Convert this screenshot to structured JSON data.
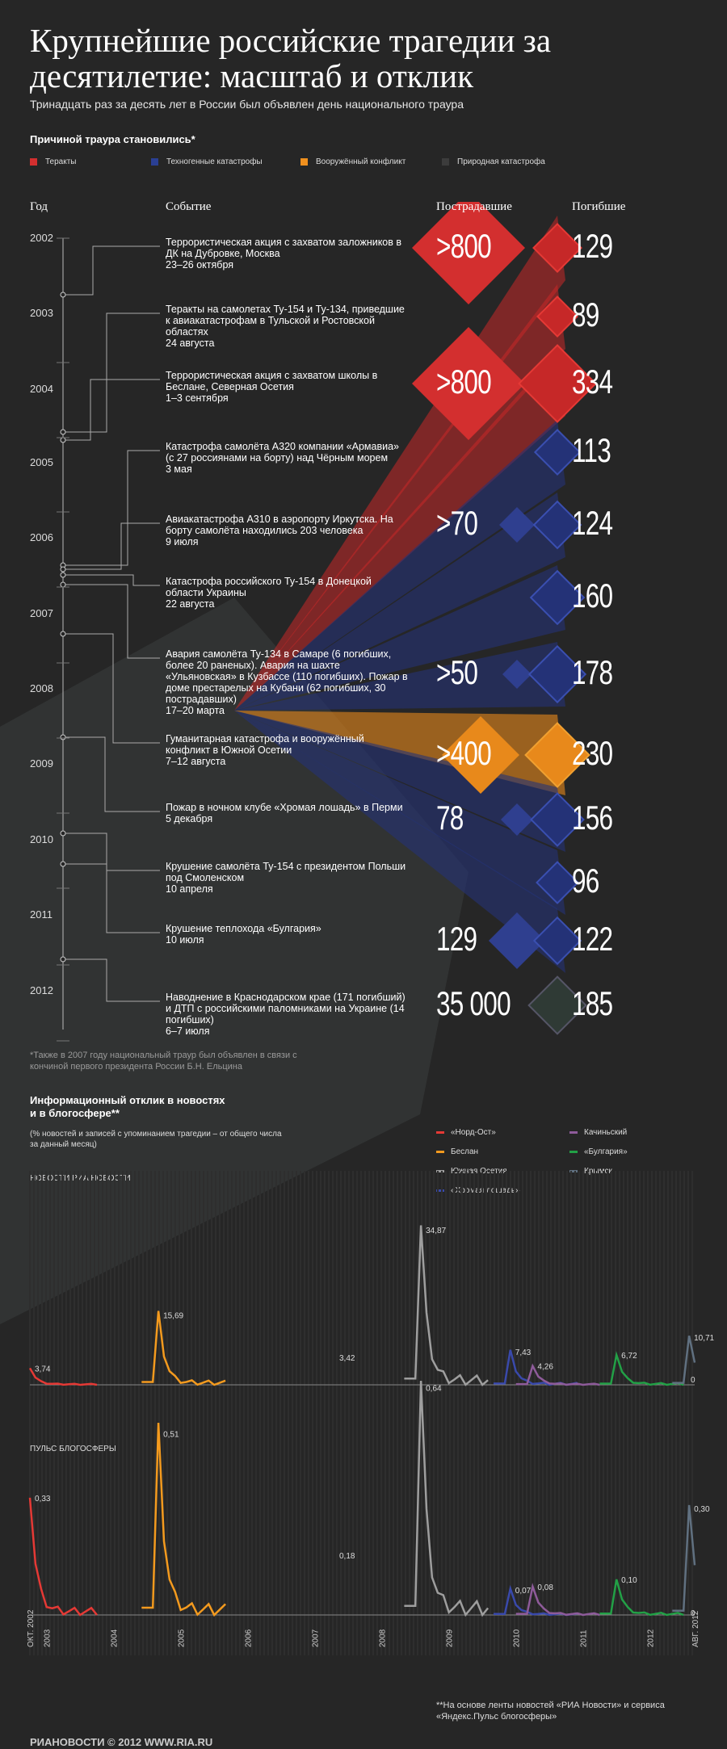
{
  "title": "Крупнейшие российские трагедии за десятилетие: масштаб и отклик",
  "subtitle": "Тринадцать раз за десять лет в России был объявлен день национального траура",
  "legend": {
    "heading": "Причиной траура становились*",
    "items": [
      {
        "label": "Теракты",
        "color": "#d32f2f"
      },
      {
        "label": "Техногенные катастрофы",
        "color": "#2a3f93"
      },
      {
        "label": "Вооружённый конфликт",
        "color": "#f0901e"
      },
      {
        "label": "Природная катастрофа",
        "color": "#3c3c3c"
      }
    ]
  },
  "columns": {
    "year": "Год",
    "event": "Событие",
    "victims": "Пострадавшие",
    "dead": "Погибшие"
  },
  "years": [
    "2002",
    "2003",
    "2004",
    "2005",
    "2006",
    "2007",
    "2008",
    "2009",
    "2010",
    "2011",
    "2012"
  ],
  "events": [
    {
      "text": "Террористическая акция с захватом заложников в ДК на Дубровке, Москва\n23–26 октября",
      "victims": ">800",
      "dead": "129",
      "type": "terror"
    },
    {
      "text": "Теракты на самолетах Ту-154 и Ту-134, приведшие к авиакатастрофам в Тульской и Ростовской областях\n24 августа",
      "victims": "",
      "dead": "89",
      "type": "terror"
    },
    {
      "text": "Террористическая акция с захватом школы в Беслане, Северная Осетия\n1–3 сентября",
      "victims": ">800",
      "dead": "334",
      "type": "terror"
    },
    {
      "text": "Катастрофа самолёта А320 компании «Армавиа» (с 27 россиянами на борту) над Чёрным морем\n3 мая",
      "victims": "",
      "dead": "113",
      "type": "tech"
    },
    {
      "text": "Авиакатастрофа А310 в аэропорту Иркутска. На борту самолёта находились 203 человека\n9 июля",
      "victims": ">70",
      "dead": "124",
      "type": "tech"
    },
    {
      "text": "Катастрофа российского Ту-154 в Донецкой области Украины\n22 августа",
      "victims": "",
      "dead": "160",
      "type": "tech"
    },
    {
      "text": "Авария самолёта Ту-134 в Самаре (6 погибших, более 20 раненых). Авария на шахте «Ульяновская» в Кузбассе (110 погибших). Пожар в доме престарелых на Кубани (62 погибших, 30 пострадавших)\n17–20 марта",
      "victims": ">50",
      "dead": "178",
      "type": "tech"
    },
    {
      "text": "Гуманитарная катастрофа и вооружённый конфликт в Южной Осетии\n7–12 августа",
      "victims": ">400",
      "dead": "230",
      "type": "war"
    },
    {
      "text": "Пожар в ночном клубе «Хромая лошадь» в Перми\n5 декабря",
      "victims": "78",
      "dead": "156",
      "type": "tech"
    },
    {
      "text": "Крушение самолёта Ту-154 с президентом Польши под Смоленском\n10 апреля",
      "victims": "",
      "dead": "96",
      "type": "tech"
    },
    {
      "text": "Крушение теплохода «Булгария»\n10 июля",
      "victims": "129",
      "dead": "122",
      "type": "tech"
    },
    {
      "text": "Наводнение в Краснодарском крае (171 погибший) и ДТП с российскими паломниками на Украине (14 погибших)\n6–7 июля",
      "victims": "35 000",
      "dead": "185",
      "type": "nature"
    }
  ],
  "footnote": "*Также в 2007 году национальный траур был объявлен в связи с кончиной первого президента России Б.Н. Ельцина",
  "response": {
    "heading": "Информационный отклик в новостях и в блогосфере**",
    "sub": "(% новостей и записей с упоминанием трагедии – от общего числа за данный месяц)",
    "panel1": "НОВОСТИ РИА НОВОСТИ",
    "panel2": "ПУЛЬС БЛОГОСФЕРЫ",
    "series_legend": [
      {
        "label": "«Норд-Ост»",
        "color": "#e53935"
      },
      {
        "label": "Беслан",
        "color": "#f39a1e"
      },
      {
        "label": "Южная Осетия",
        "color": "#9e9e9e"
      },
      {
        "label": "«Хромая лошадь»",
        "color": "#3949ab"
      },
      {
        "label": "Качиньский",
        "color": "#8e5b9a"
      },
      {
        "label": "«Булгария»",
        "color": "#22a046"
      },
      {
        "label": "Крымск",
        "color": "#607080"
      }
    ]
  },
  "chart_data": [
    {
      "type": "line",
      "title": "НОВОСТИ РИА НОВОСТИ",
      "x": [
        "ОКТ. 2002",
        "2003",
        "2004",
        "2005",
        "2006",
        "2007",
        "2008",
        "2009",
        "2010",
        "2011",
        "2012",
        "АВГ. 2012"
      ],
      "annotations": [
        "3,74",
        "15,69",
        "3,42",
        "34,87",
        "7,43",
        "4,26",
        "6,72",
        "10,71",
        "0"
      ],
      "series": [
        {
          "name": "«Норд-Ост»",
          "peak": 3.74
        },
        {
          "name": "Беслан",
          "peak": 15.69
        },
        {
          "name": "Южная Осетия",
          "peak": 34.87
        },
        {
          "name": "«Хромая лошадь»",
          "peak": 7.43
        },
        {
          "name": "Качиньский",
          "peak": 4.26
        },
        {
          "name": "«Булгария»",
          "peak": 6.72
        },
        {
          "name": "Крымск",
          "peak": 10.71
        }
      ]
    },
    {
      "type": "line",
      "title": "ПУЛЬС БЛОГОСФЕРЫ",
      "annotations": [
        "0,33",
        "0,51",
        "0,18",
        "0,64",
        "0,07",
        "0,08",
        "0,10",
        "0,30",
        "0"
      ],
      "series": [
        {
          "name": "«Норд-Ост»",
          "peak": 0.33
        },
        {
          "name": "Беслан",
          "peak": 0.51
        },
        {
          "name": "Южная Осетия",
          "peak": 0.64
        },
        {
          "name": "«Хромая лошадь»",
          "peak": 0.07
        },
        {
          "name": "Качиньский",
          "peak": 0.08
        },
        {
          "name": "«Булгария»",
          "peak": 0.1
        },
        {
          "name": "Крымск",
          "peak": 0.3
        }
      ]
    }
  ],
  "axis_years": [
    "ОКТ. 2002",
    "2003",
    "2004",
    "2005",
    "2006",
    "2007",
    "2008",
    "2009",
    "2010",
    "2011",
    "2012",
    "АВГ. 2012"
  ],
  "source": "**На основе ленты новостей «РИА Новости» и сервиса «Яндекс.Пульс блогосферы»",
  "logo": "РИАНОВОСТИ © 2012 WWW.RIA.RU"
}
